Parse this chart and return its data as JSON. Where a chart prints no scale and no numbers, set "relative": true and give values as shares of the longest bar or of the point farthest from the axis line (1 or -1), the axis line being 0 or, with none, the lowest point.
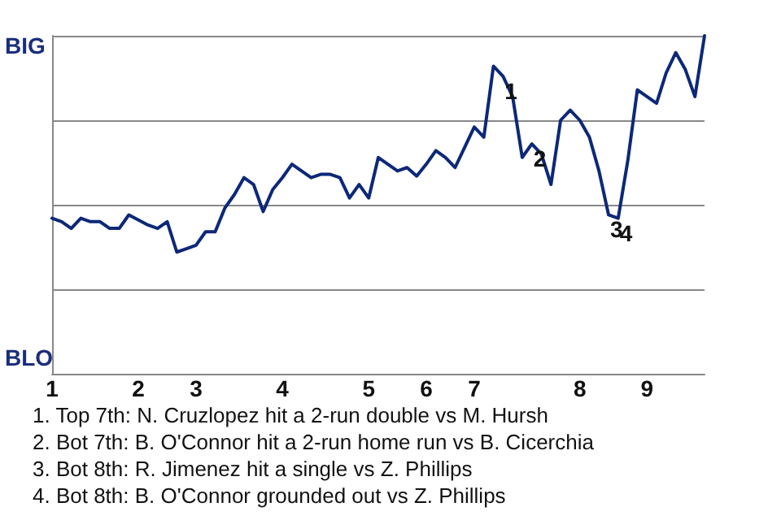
{
  "chart_data": {
    "type": "line",
    "relative": true,
    "categories": [
      "1",
      null,
      null,
      null,
      null,
      null,
      null,
      null,
      null,
      "2",
      null,
      null,
      null,
      null,
      null,
      "3",
      null,
      null,
      null,
      null,
      null,
      null,
      null,
      null,
      "4",
      null,
      null,
      null,
      null,
      null,
      null,
      null,
      null,
      "5",
      null,
      null,
      null,
      null,
      null,
      "6",
      null,
      null,
      null,
      null,
      "7",
      null,
      null,
      null,
      null,
      null,
      null,
      null,
      null,
      null,
      null,
      "8",
      null,
      null,
      null,
      null,
      null,
      null,
      "9",
      null,
      null,
      null,
      null,
      null,
      null
    ],
    "series": [
      {
        "color": "#0d2878",
        "values": [
          0.46,
          0.45,
          0.43,
          0.46,
          0.45,
          0.45,
          0.43,
          0.43,
          0.47,
          0.455,
          0.44,
          0.43,
          0.45,
          0.36,
          0.37,
          0.38,
          0.42,
          0.42,
          0.49,
          0.53,
          0.58,
          0.56,
          0.48,
          0.545,
          0.58,
          0.62,
          0.6,
          0.58,
          0.59,
          0.59,
          0.58,
          0.52,
          0.56,
          0.52,
          0.64,
          0.62,
          0.6,
          0.61,
          0.585,
          0.62,
          0.66,
          0.64,
          0.61,
          0.67,
          0.73,
          0.7,
          0.91,
          0.88,
          0.82,
          0.64,
          0.68,
          0.65,
          0.56,
          0.75,
          0.78,
          0.75,
          0.7,
          0.6,
          0.47,
          0.46,
          0.63,
          0.84,
          0.82,
          0.8,
          0.89,
          0.95,
          0.9,
          0.82,
          1.0
        ]
      }
    ],
    "grid": "y",
    "marker": "none",
    "line_style": "solid",
    "annotations": [
      "BIG",
      "BLO",
      {
        "text": "1",
        "y": 0.88
      },
      {
        "text": "2",
        "y": 0.68
      },
      {
        "text": "3",
        "y": 0.47
      },
      {
        "text": "4",
        "y": 0.46
      },
      "1. Top 7th: N. Cruzlopez hit a 2-run double vs M. Hursh",
      "2. Bot 7th: B. O'Connor hit a 2-run home run vs B. Cicerchia",
      "3. Bot 8th: R. Jimenez hit a single vs Z. Phillips",
      "4. Bot 8th: B. O'Connor grounded out vs Z. Phillips"
    ]
  }
}
